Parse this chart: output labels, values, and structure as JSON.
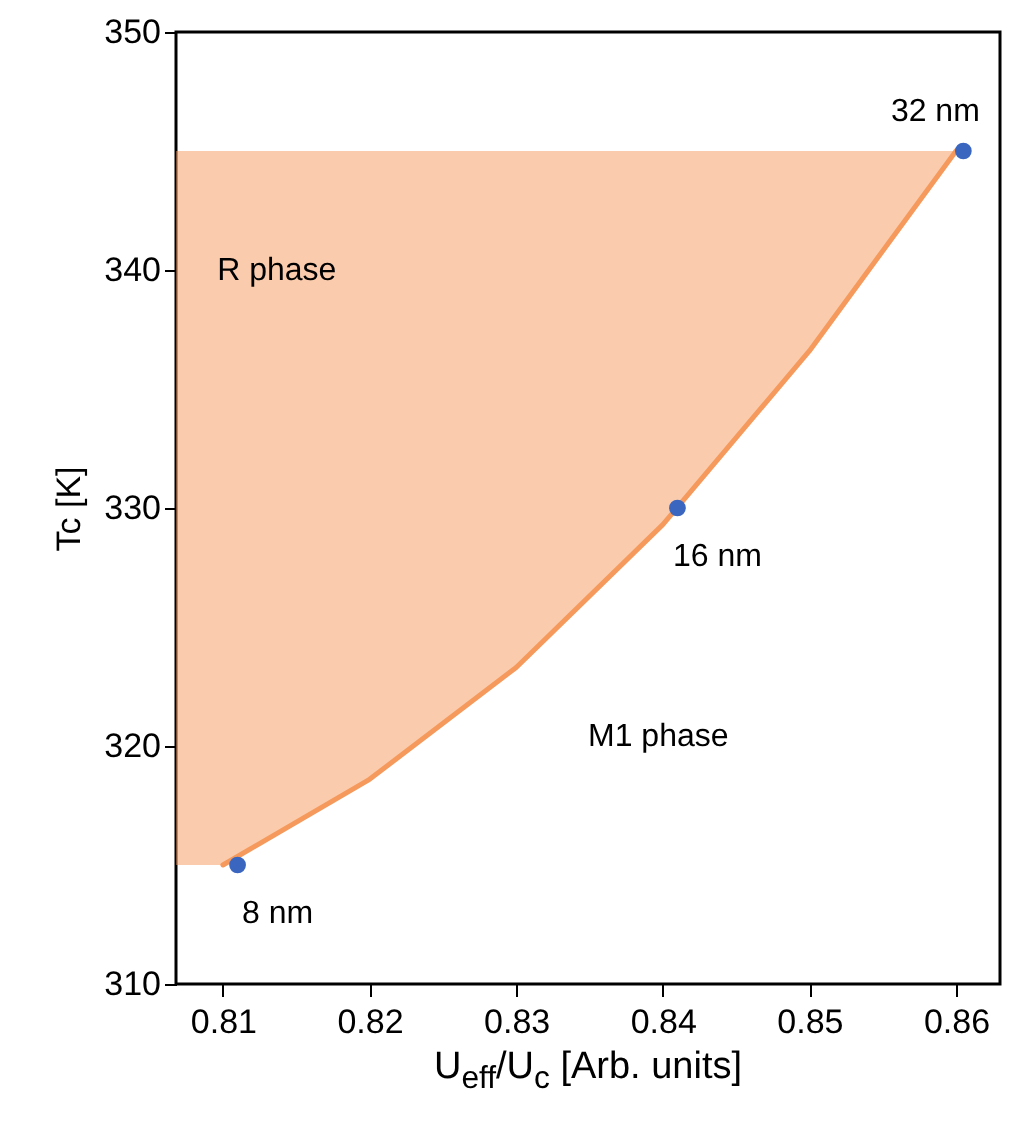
{
  "chart_data": {
    "type": "scatter",
    "xlabel": "U$_{eff}$/U$_{c}$ [Arb. units]",
    "ylabel": "Tc [K]",
    "xlim": [
      0.8068,
      0.863
    ],
    "ylim": [
      310,
      350
    ],
    "xticks": [
      {
        "value": 0.81,
        "label": "0.81"
      },
      {
        "value": 0.82,
        "label": "0.82"
      },
      {
        "value": 0.83,
        "label": "0.83"
      },
      {
        "value": 0.84,
        "label": "0.84"
      },
      {
        "value": 0.85,
        "label": "0.85"
      },
      {
        "value": 0.86,
        "label": "0.86"
      }
    ],
    "yticks": [
      310,
      320,
      330,
      340,
      350
    ],
    "grid": false,
    "series": [
      {
        "type": "line",
        "color": "#f59a5c",
        "line_style": "solid",
        "marker": "none",
        "x": [
          0.8068,
          0.81,
          0.82,
          0.83,
          0.84,
          0.85,
          0.86
        ],
        "values": [
          null,
          315,
          318.6,
          323.3,
          329.3,
          336.6,
          345
        ],
        "lower": [
          315,
          315,
          318.6,
          323.3,
          329.3,
          336.6,
          345
        ],
        "upper": [
          345,
          345,
          345,
          345,
          345,
          345,
          345
        ]
      },
      {
        "color": "#3a66c0",
        "marker": "circle",
        "x": [
          0.811,
          0.841,
          0.8605
        ],
        "values": [
          315,
          330,
          345
        ]
      }
    ],
    "annotations": [
      "R phase",
      "M1 phase",
      {
        "text": "8 nm",
        "x": 0.811,
        "y": 315
      },
      {
        "text": "16 nm",
        "x": 0.841,
        "y": 330
      },
      {
        "text": "32 nm",
        "x": 0.8605,
        "y": 345
      }
    ]
  }
}
